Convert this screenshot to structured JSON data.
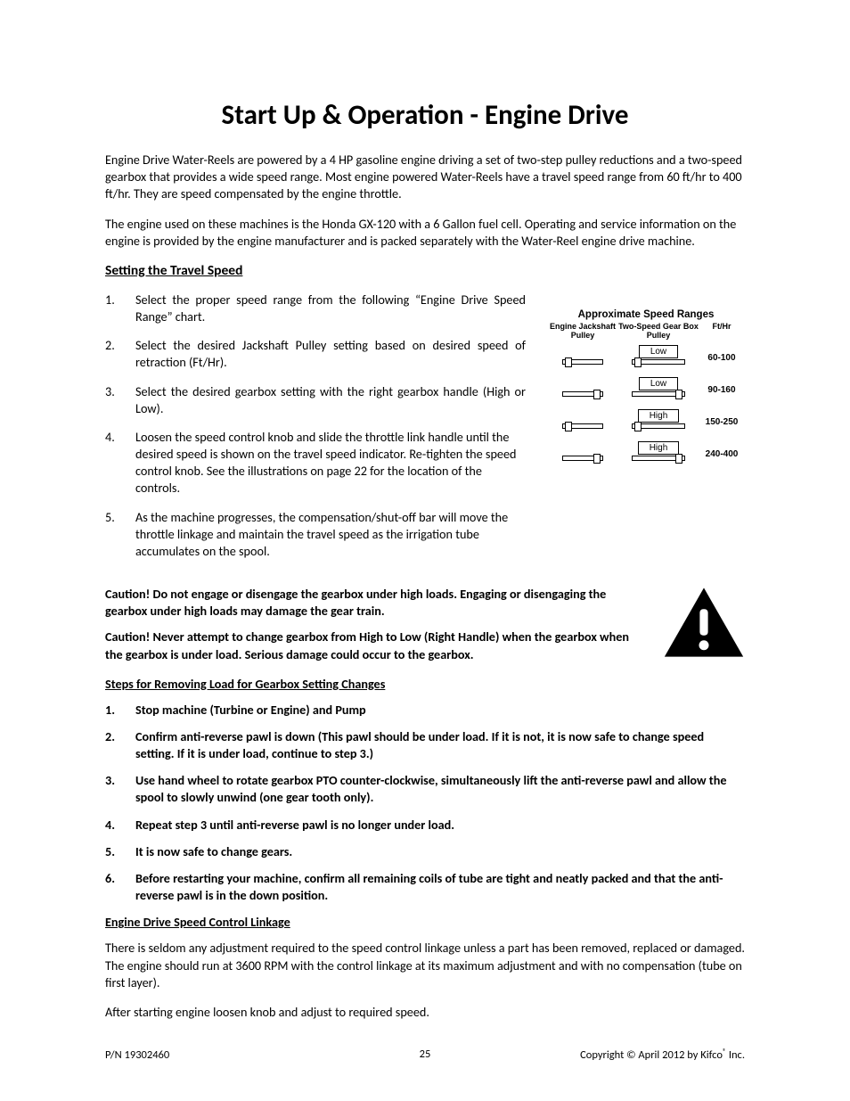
{
  "title": "Start Up & Operation - Engine Drive",
  "intro": [
    "Engine Drive Water-Reels are powered by a 4 HP gasoline engine driving a set of two-step pulley reductions and a two-speed gearbox that provides a wide speed range.  Most engine powered Water-Reels have a travel speed range from 60 ft/hr to 400 ft/hr.  They are speed compensated by the engine throttle.",
    "The engine used on these machines is the Honda GX-120 with a 6 Gallon fuel cell.  Operating and service information on the engine is provided by the engine manufacturer and is packed separately with the Water-Reel engine drive machine."
  ],
  "section1_heading": "Setting the Travel Speed",
  "steps": [
    "Select the proper speed range from the following “Engine Drive Speed Range” chart.",
    "Select the desired Jackshaft Pulley setting based on desired speed of retraction (Ft/Hr).",
    "Select the desired gearbox setting with the right gearbox handle (High or Low).",
    "Loosen the speed control knob and slide the throttle link handle until the desired speed is shown on the travel speed indicator.  Re-tighten the speed control knob.  See the illustrations on page 22 for the location of the controls.",
    "As the machine progresses, the compensation/shut-off bar will move the throttle linkage and maintain the travel speed as the irrigation tube accumulates on the spool."
  ],
  "chart": {
    "title": "Approximate Speed Ranges",
    "headers": [
      "Engine Jackshaft Pulley",
      "Two-Speed Gear Box Pulley",
      "Ft/Hr"
    ],
    "rows": [
      {
        "jack_nub": "left",
        "gear": "Low",
        "gear_nub": "left",
        "ft": "60-100"
      },
      {
        "jack_nub": "right",
        "gear": "Low",
        "gear_nub": "right",
        "ft": "90-160"
      },
      {
        "jack_nub": "left",
        "gear": "High",
        "gear_nub": "left",
        "ft": "150-250"
      },
      {
        "jack_nub": "right",
        "gear": "High",
        "gear_nub": "right",
        "ft": "240-400"
      }
    ]
  },
  "cautions": [
    "Caution! Do not engage or disengage the gearbox under high loads.  Engaging or disengaging the gearbox under high loads may damage the gear train.",
    "Caution! Never attempt to change gearbox from High to Low (Right Handle) when the gearbox  when the gearbox is under load.  Serious damage could occur to the gearbox."
  ],
  "steps2_heading": "Steps for Removing Load for Gearbox Setting Changes",
  "steps2": [
    "Stop machine (Turbine or Engine) and Pump",
    "Confirm anti-reverse pawl is down (This pawl should be under load.  If it is not, it is now safe to change speed setting.  If it is under load, continue to step 3.)",
    "Use hand wheel to rotate gearbox PTO counter-clockwise, simultaneously lift the anti-reverse pawl and allow the spool to slowly unwind (one gear tooth only).",
    "Repeat step 3 until anti-reverse pawl is no longer under load.",
    "It is now safe to change gears.",
    "Before restarting your machine, confirm all remaining coils of tube are tight and neatly packed and that the anti-reverse pawl is in the down position."
  ],
  "section3_heading": "Engine Drive Speed Control Linkage",
  "section3_paras": [
    "There is seldom any adjustment required to the speed control linkage unless a part has been removed, replaced or damaged.  The engine should run at 3600 RPM with the control linkage at its maximum adjustment and with no compensation (tube on first layer).",
    "After starting engine loosen knob and adjust to required speed."
  ],
  "footer": {
    "left": "P/N 19302460",
    "page": "25",
    "right_prefix": "Copyright © April 2012 by Kifco",
    "right_suffix": " Inc."
  }
}
